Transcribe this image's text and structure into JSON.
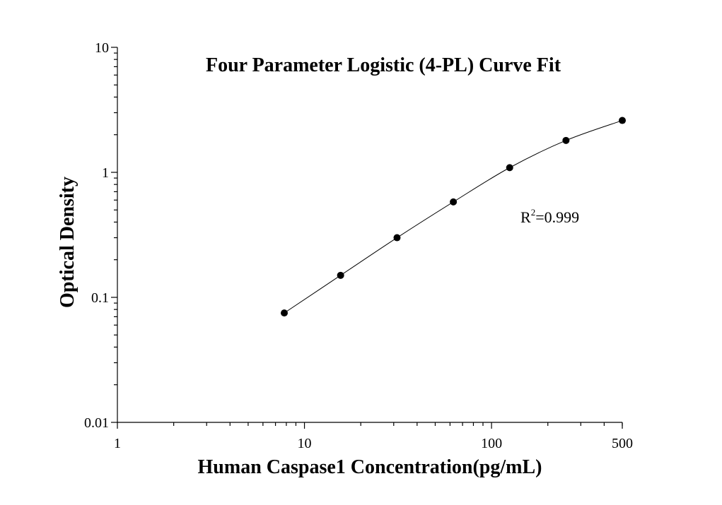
{
  "chart_data": {
    "type": "scatter",
    "title": "Four Parameter Logistic (4-PL) Curve Fit",
    "xlabel": "Human Caspase1 Concentration(pg/mL)",
    "ylabel": "Optical Density",
    "xscale": "log",
    "yscale": "log",
    "xlim": [
      1,
      500
    ],
    "ylim": [
      0.01,
      10
    ],
    "xticks": [
      1,
      10,
      100,
      500
    ],
    "xtick_labels": [
      "1",
      "10",
      "100",
      "500"
    ],
    "yticks": [
      0.01,
      0.1,
      1,
      10
    ],
    "ytick_labels": [
      "0.01",
      "0.1",
      "1",
      "10"
    ],
    "grid": false,
    "series": [
      {
        "x": [
          7.8,
          15.6,
          31.25,
          62.5,
          125,
          250,
          500
        ],
        "y": [
          0.075,
          0.15,
          0.3,
          0.58,
          1.09,
          1.8,
          2.6
        ],
        "fit": "4PL",
        "marker_color": "#000000",
        "line_color": "#000000"
      }
    ],
    "annotation": {
      "text_main": "R",
      "text_sup": "2",
      "text_rest": "=0.999"
    }
  }
}
